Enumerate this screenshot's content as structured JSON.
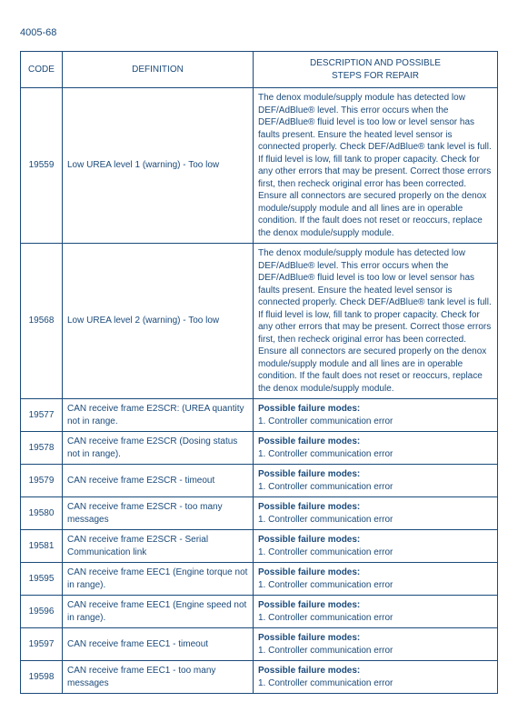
{
  "page_number": "4005-68",
  "headers": {
    "code": "CODE",
    "definition": "DEFINITION",
    "description": "DESCRIPTION AND POSSIBLE\nSTEPS FOR REPAIR"
  },
  "rows": [
    {
      "code": "19559",
      "definition": "Low UREA level 1 (warning) - Too low",
      "desc_type": "text",
      "description": "The denox module/supply module has detected low DEF/AdBlue® level. This error occurs when the DEF/AdBlue® fluid level is too low or level sensor has faults present. Ensure the heated level sensor is connected properly. Check DEF/AdBlue® tank level is full. If fluid level is low, fill tank to proper capacity. Check for any other errors that may be present. Correct those errors first, then recheck original error has been corrected. Ensure all connectors are secured properly on the denox module/supply module and all lines are in operable condition. If the fault does not reset or reoccurs, replace the denox module/supply module."
    },
    {
      "code": "19568",
      "definition": "Low UREA level 2 (warning) - Too low",
      "desc_type": "text",
      "description": "The denox module/supply module has detected low DEF/AdBlue® level. This error occurs when the DEF/AdBlue® fluid level is too low or level sensor has faults present. Ensure the heated level sensor is connected properly. Check DEF/AdBlue® tank level is full. If fluid level is low, fill tank to proper capacity. Check for any other errors that may be present. Correct those errors first, then recheck original error has been corrected. Ensure all connectors are secured properly on the denox module/supply module and all lines are in operable condition. If the fault does not reset or reoccurs, replace the denox module/supply module."
    },
    {
      "code": "19577",
      "definition": "CAN receive frame E2SCR: (UREA quantity not in range.",
      "desc_type": "failure",
      "failure_title": "Possible failure modes:",
      "failure_line": "1. Controller communication error"
    },
    {
      "code": "19578",
      "definition": "CAN receive frame E2SCR (Dosing status not in range).",
      "desc_type": "failure",
      "failure_title": "Possible failure modes:",
      "failure_line": "1. Controller communication error"
    },
    {
      "code": "19579",
      "definition": "CAN receive frame E2SCR - timeout",
      "desc_type": "failure",
      "failure_title": "Possible failure modes:",
      "failure_line": "1. Controller communication error"
    },
    {
      "code": "19580",
      "definition": "CAN receive frame E2SCR - too many messages",
      "desc_type": "failure",
      "failure_title": "Possible failure modes:",
      "failure_line": "1. Controller communication error"
    },
    {
      "code": "19581",
      "definition": "CAN receive frame E2SCR - Serial Communication link",
      "desc_type": "failure",
      "failure_title": "Possible failure modes:",
      "failure_line": "1. Controller communication error"
    },
    {
      "code": "19595",
      "definition": "CAN receive frame EEC1 (Engine torque not in range).",
      "desc_type": "failure",
      "failure_title": "Possible failure modes:",
      "failure_line": "1. Controller communication error"
    },
    {
      "code": "19596",
      "definition": "CAN receive frame EEC1 (Engine speed not in range).",
      "desc_type": "failure",
      "failure_title": "Possible failure modes:",
      "failure_line": "1. Controller communication error"
    },
    {
      "code": "19597",
      "definition": "CAN receive frame EEC1 - timeout",
      "desc_type": "failure",
      "failure_title": "Possible failure modes:",
      "failure_line": "1. Controller communication error"
    },
    {
      "code": "19598",
      "definition": "CAN receive frame EEC1 - too many messages",
      "desc_type": "failure",
      "failure_title": "Possible failure modes:",
      "failure_line": "1. Controller communication error"
    }
  ]
}
